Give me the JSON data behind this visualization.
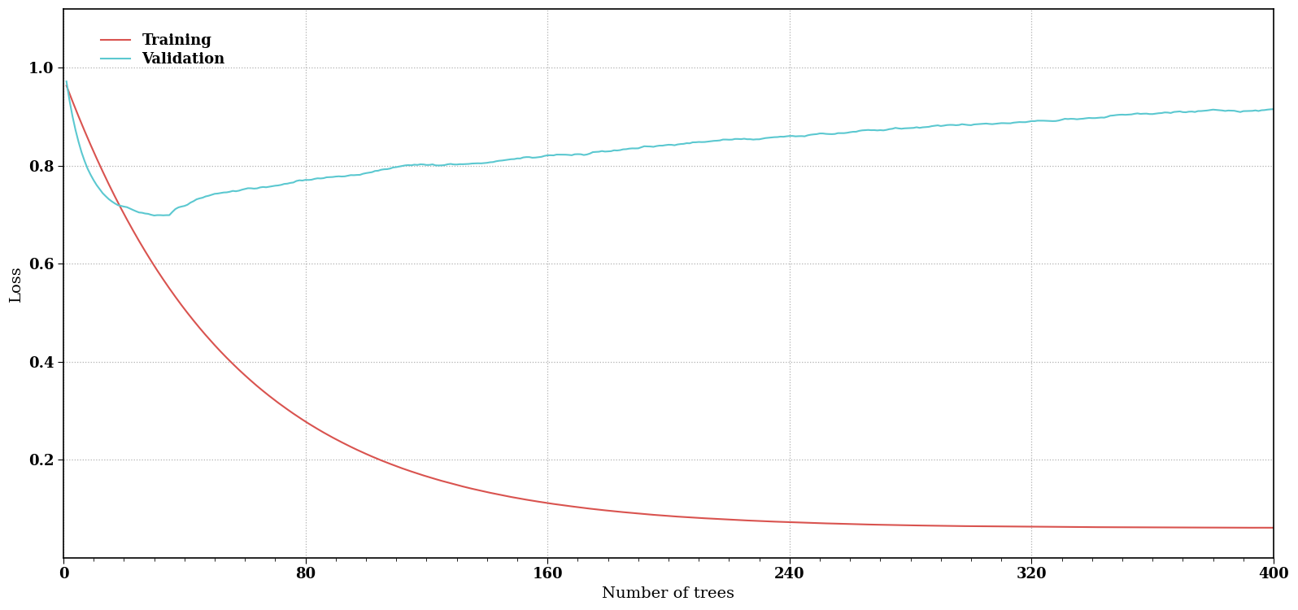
{
  "title": "",
  "xlabel": "Number of trees",
  "ylabel": "Loss",
  "xlim": [
    0,
    400
  ],
  "ylim": [
    0.0,
    1.12
  ],
  "yticks": [
    0.2,
    0.4,
    0.6,
    0.8,
    1.0
  ],
  "xticks": [
    0,
    80,
    160,
    240,
    320,
    400
  ],
  "training_color": "#d9534f",
  "validation_color": "#5bc8d0",
  "background_color": "#ffffff",
  "grid_color": "#b0b0b0",
  "legend_labels": [
    "Training",
    "Validation"
  ],
  "n_trees": 400,
  "figsize": [
    15.96,
    7.5
  ],
  "dpi": 100
}
